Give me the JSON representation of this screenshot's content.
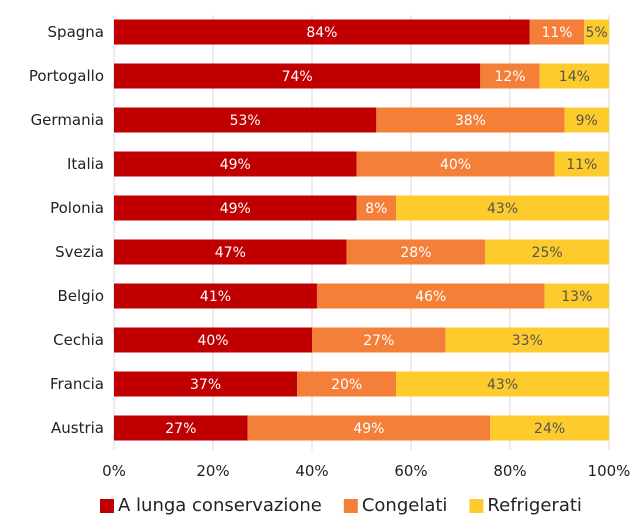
{
  "chart_data": {
    "type": "bar",
    "orientation": "horizontal",
    "stacked": "percent",
    "categories": [
      "Spagna",
      "Portogallo",
      "Germania",
      "Italia",
      "Polonia",
      "Svezia",
      "Belgio",
      "Cechia",
      "Francia",
      "Austria"
    ],
    "series": [
      {
        "name": "A lunga conservazione",
        "color": "#c00000",
        "values": [
          84,
          74,
          53,
          49,
          49,
          47,
          41,
          40,
          37,
          27
        ]
      },
      {
        "name": "Congelati",
        "color": "#f47f38",
        "values": [
          11,
          12,
          38,
          40,
          8,
          28,
          46,
          27,
          20,
          49
        ]
      },
      {
        "name": "Refrigerati",
        "color": "#fdcb2b",
        "values": [
          5,
          14,
          9,
          11,
          43,
          25,
          13,
          33,
          43,
          24
        ]
      }
    ],
    "xlim": [
      0,
      100
    ],
    "xticks": [
      "0%",
      "20%",
      "40%",
      "60%",
      "80%",
      "100%"
    ],
    "grid": "vertical",
    "gridline_color": "#d9d9d9",
    "legend_position": "bottom",
    "data_label_suffix": "%",
    "label_colors": [
      "#ffffff",
      "#ffffff",
      "#555555"
    ]
  }
}
